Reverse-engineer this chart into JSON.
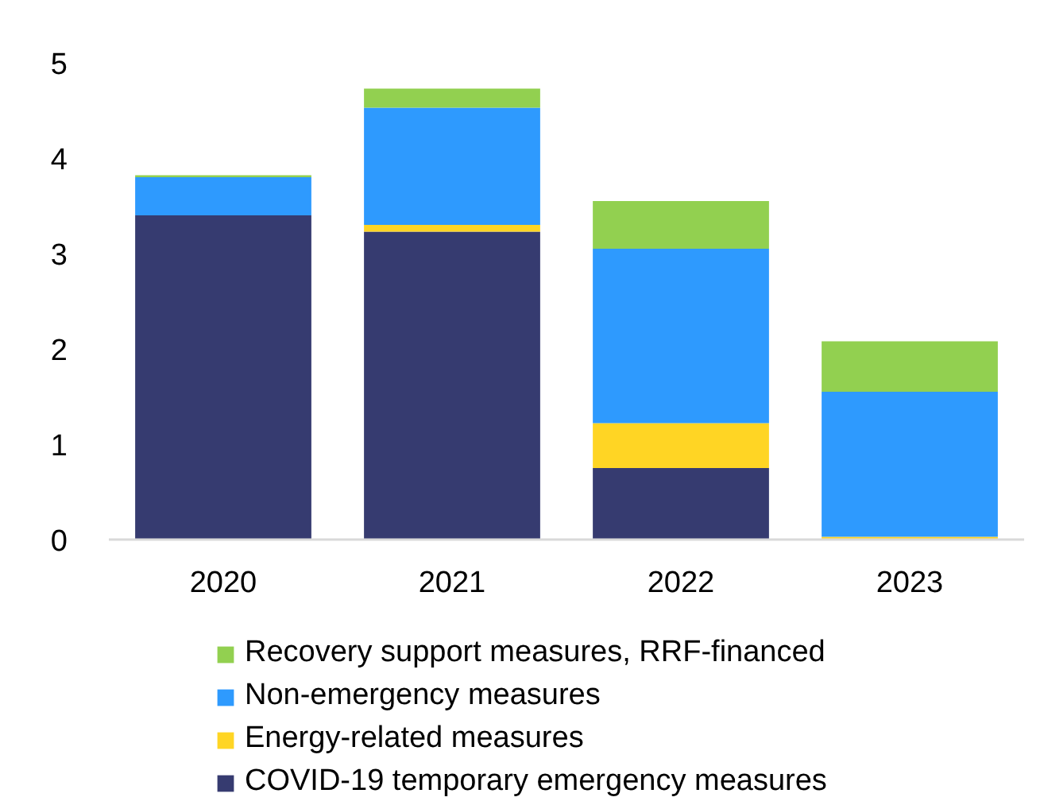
{
  "chart_data": {
    "type": "bar",
    "stacked": true,
    "categories": [
      "2020",
      "2021",
      "2022",
      "2023"
    ],
    "series": [
      {
        "name": "COVID-19 temporary emergency measures",
        "color": "#363b70",
        "values": [
          3.4,
          3.23,
          0.75,
          0
        ]
      },
      {
        "name": "Energy-related measures",
        "color": "#ffd524",
        "values": [
          0,
          0.07,
          0.47,
          0.03
        ]
      },
      {
        "name": "Non-emergency measures",
        "color": "#2e9afe",
        "values": [
          0.4,
          1.23,
          1.83,
          1.52
        ]
      },
      {
        "name": "Recovery support measures, RRF-financed",
        "color": "#92d050",
        "values": [
          0.02,
          0.2,
          0.5,
          0.53
        ]
      }
    ],
    "ylim": [
      0,
      5
    ],
    "yticks": [
      0,
      1,
      2,
      3,
      4,
      5
    ],
    "legend": "bottom"
  }
}
